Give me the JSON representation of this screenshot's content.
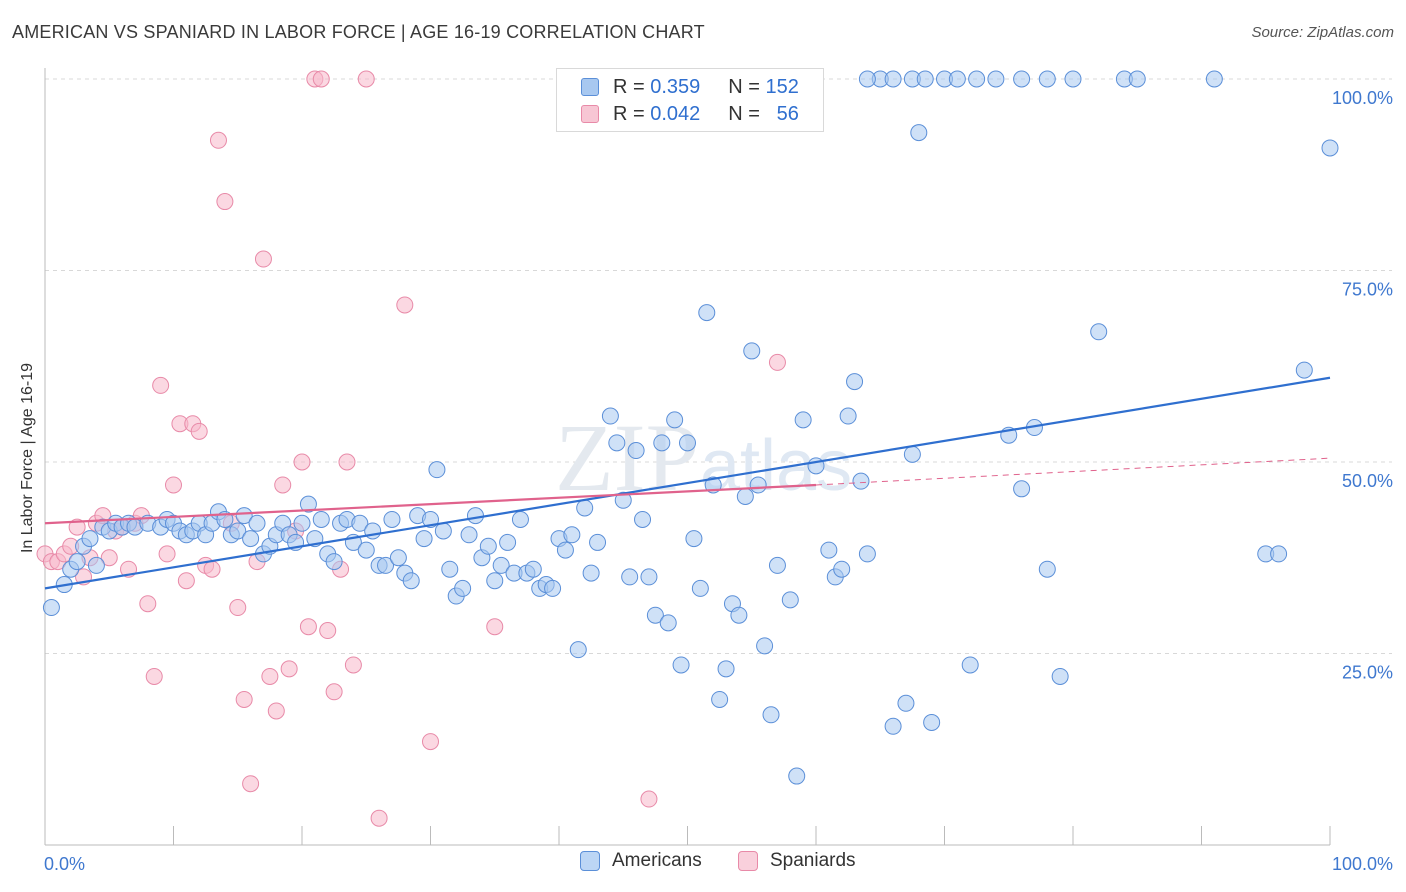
{
  "header": {
    "title": "AMERICAN VS SPANIARD IN LABOR FORCE | AGE 16-19 CORRELATION CHART",
    "source": "Source: ZipAtlas.com"
  },
  "legend_top": {
    "rows": [
      {
        "r_label": "R =",
        "r_value": "0.359",
        "n_label": "N =",
        "n_value": "152"
      },
      {
        "r_label": "R =",
        "r_value": "0.042",
        "n_label": "N =",
        "n_value": "56"
      }
    ]
  },
  "legend_bottom": {
    "items": [
      "Americans",
      "Spaniards"
    ]
  },
  "colors": {
    "americans_fill": "#a8c8f0",
    "americans_stroke": "#5b8fd8",
    "americans_line": "#2f6fcf",
    "spaniards_fill": "#f7b8cb",
    "spaniards_stroke": "#e88aa8",
    "spaniards_line": "#e0628c",
    "axis_label": "#3f78cf"
  },
  "chart_data": {
    "type": "scatter",
    "title": "AMERICAN VS SPANIARD IN LABOR FORCE | AGE 16-19 CORRELATION CHART",
    "ylabel": "In Labor Force | Age 16-19",
    "xlabel": "",
    "xlim": [
      0,
      100
    ],
    "ylim": [
      0,
      100
    ],
    "x_tick_labels": [
      "0.0%",
      "100.0%"
    ],
    "y_tick_labels": [
      "25.0%",
      "50.0%",
      "75.0%",
      "100.0%"
    ],
    "y_ticks": [
      25,
      50,
      75,
      100
    ],
    "grid": true,
    "legend_placement": "top-center",
    "watermark": "ZIPatlas",
    "series": [
      {
        "name": "Americans",
        "r": 0.359,
        "n": 152,
        "trend": {
          "x": [
            0,
            100
          ],
          "y": [
            33.5,
            61.0
          ]
        },
        "points": [
          [
            0.5,
            31
          ],
          [
            1.5,
            34
          ],
          [
            2,
            36
          ],
          [
            2.5,
            37
          ],
          [
            3,
            39
          ],
          [
            3.5,
            40
          ],
          [
            4,
            36.5
          ],
          [
            4.5,
            41.5
          ],
          [
            5,
            41
          ],
          [
            5.5,
            42
          ],
          [
            6,
            41.5
          ],
          [
            6.5,
            42
          ],
          [
            7,
            41.5
          ],
          [
            8,
            42
          ],
          [
            9,
            41.5
          ],
          [
            9.5,
            42.5
          ],
          [
            10,
            42
          ],
          [
            10.5,
            41
          ],
          [
            11,
            40.5
          ],
          [
            11.5,
            41
          ],
          [
            12,
            42
          ],
          [
            12.5,
            40.5
          ],
          [
            13,
            42
          ],
          [
            13.5,
            43.5
          ],
          [
            14,
            42.5
          ],
          [
            14.5,
            40.5
          ],
          [
            15,
            41
          ],
          [
            15.5,
            43
          ],
          [
            16,
            40
          ],
          [
            16.5,
            42
          ],
          [
            17,
            38
          ],
          [
            17.5,
            39
          ],
          [
            18,
            40.5
          ],
          [
            18.5,
            42
          ],
          [
            19,
            40.5
          ],
          [
            19.5,
            39.5
          ],
          [
            20,
            42
          ],
          [
            20.5,
            44.5
          ],
          [
            21,
            40
          ],
          [
            21.5,
            42.5
          ],
          [
            22,
            38
          ],
          [
            22.5,
            37
          ],
          [
            23,
            42
          ],
          [
            23.5,
            42.5
          ],
          [
            24,
            39.5
          ],
          [
            24.5,
            42
          ],
          [
            25,
            38.5
          ],
          [
            25.5,
            41
          ],
          [
            26,
            36.5
          ],
          [
            26.5,
            36.5
          ],
          [
            27,
            42.5
          ],
          [
            27.5,
            37.5
          ],
          [
            28,
            35.5
          ],
          [
            28.5,
            34.5
          ],
          [
            29,
            43
          ],
          [
            29.5,
            40
          ],
          [
            30,
            42.5
          ],
          [
            30.5,
            49
          ],
          [
            31,
            41
          ],
          [
            31.5,
            36
          ],
          [
            32,
            32.5
          ],
          [
            32.5,
            33.5
          ],
          [
            33,
            40.5
          ],
          [
            33.5,
            43
          ],
          [
            34,
            37.5
          ],
          [
            34.5,
            39
          ],
          [
            35,
            34.5
          ],
          [
            35.5,
            36.5
          ],
          [
            36,
            39.5
          ],
          [
            36.5,
            35.5
          ],
          [
            37,
            42.5
          ],
          [
            37.5,
            35.5
          ],
          [
            38,
            36
          ],
          [
            38.5,
            33.5
          ],
          [
            39,
            34
          ],
          [
            39.5,
            33.5
          ],
          [
            40,
            40
          ],
          [
            40.5,
            38.5
          ],
          [
            41,
            40.5
          ],
          [
            41.5,
            25.5
          ],
          [
            42,
            44
          ],
          [
            42.5,
            35.5
          ],
          [
            43,
            39.5
          ],
          [
            44,
            56
          ],
          [
            44.5,
            52.5
          ],
          [
            45,
            45
          ],
          [
            45.5,
            35
          ],
          [
            46,
            51.5
          ],
          [
            46.5,
            42.5
          ],
          [
            47,
            35
          ],
          [
            47.5,
            30
          ],
          [
            48,
            52.5
          ],
          [
            48.5,
            29
          ],
          [
            49,
            55.5
          ],
          [
            49.5,
            23.5
          ],
          [
            50,
            52.5
          ],
          [
            50.5,
            40
          ],
          [
            51,
            33.5
          ],
          [
            51.5,
            69.5
          ],
          [
            52,
            47
          ],
          [
            52.5,
            19
          ],
          [
            53,
            23
          ],
          [
            53.5,
            31.5
          ],
          [
            54,
            30
          ],
          [
            54.5,
            45.5
          ],
          [
            55,
            64.5
          ],
          [
            55.5,
            47
          ],
          [
            56,
            26
          ],
          [
            56.5,
            17
          ],
          [
            57,
            36.5
          ],
          [
            58,
            32
          ],
          [
            58.5,
            9
          ],
          [
            59,
            55.5
          ],
          [
            60,
            49.5
          ],
          [
            61,
            38.5
          ],
          [
            61.5,
            35
          ],
          [
            62,
            36
          ],
          [
            62.5,
            56
          ],
          [
            63,
            60.5
          ],
          [
            63.5,
            47.5
          ],
          [
            64,
            38
          ],
          [
            66,
            15.5
          ],
          [
            67,
            18.5
          ],
          [
            67.5,
            51
          ],
          [
            68,
            93
          ],
          [
            69,
            16
          ],
          [
            72,
            23.5
          ],
          [
            75,
            53.5
          ],
          [
            76,
            46.5
          ],
          [
            77,
            54.5
          ],
          [
            78,
            36
          ],
          [
            79,
            22
          ],
          [
            82,
            67
          ],
          [
            84,
            100
          ],
          [
            85,
            100
          ],
          [
            98,
            62
          ],
          [
            100,
            91
          ],
          [
            70,
            100
          ],
          [
            71,
            100
          ],
          [
            72.5,
            100
          ],
          [
            74,
            100
          ],
          [
            76,
            100
          ],
          [
            78,
            100
          ],
          [
            80,
            100
          ],
          [
            65,
            100
          ],
          [
            66,
            100
          ],
          [
            67.5,
            100
          ],
          [
            68.5,
            100
          ],
          [
            95,
            38
          ],
          [
            96,
            38
          ],
          [
            64,
            100
          ],
          [
            91,
            100
          ]
        ]
      },
      {
        "name": "Spaniards",
        "r": 0.042,
        "n": 56,
        "trend": {
          "x": [
            0,
            60
          ],
          "y": [
            42.0,
            47.0
          ]
        },
        "trend_extension": {
          "x": [
            60,
            100
          ],
          "y": [
            47.0,
            50.5
          ]
        },
        "points": [
          [
            0,
            38
          ],
          [
            0.5,
            37
          ],
          [
            1,
            37
          ],
          [
            1.5,
            38
          ],
          [
            2,
            39
          ],
          [
            2.5,
            41.5
          ],
          [
            3,
            35
          ],
          [
            3.5,
            37.5
          ],
          [
            4,
            42
          ],
          [
            4.5,
            43
          ],
          [
            5,
            37.5
          ],
          [
            5.5,
            41
          ],
          [
            6,
            41.5
          ],
          [
            6.5,
            36
          ],
          [
            7,
            42
          ],
          [
            7.5,
            43
          ],
          [
            8,
            31.5
          ],
          [
            8.5,
            22
          ],
          [
            9,
            60
          ],
          [
            9.5,
            38
          ],
          [
            10,
            47
          ],
          [
            10.5,
            55
          ],
          [
            11,
            34.5
          ],
          [
            11.5,
            55
          ],
          [
            12,
            54
          ],
          [
            12.5,
            36.5
          ],
          [
            13,
            36
          ],
          [
            13.5,
            92
          ],
          [
            14,
            84
          ],
          [
            14.5,
            42
          ],
          [
            15,
            31
          ],
          [
            15.5,
            19
          ],
          [
            16,
            8
          ],
          [
            16.5,
            37
          ],
          [
            17,
            76.5
          ],
          [
            17.5,
            22
          ],
          [
            18,
            17.5
          ],
          [
            18.5,
            47
          ],
          [
            19,
            23
          ],
          [
            19.5,
            41
          ],
          [
            20,
            50
          ],
          [
            20.5,
            28.5
          ],
          [
            21,
            100
          ],
          [
            21.5,
            100
          ],
          [
            22,
            28
          ],
          [
            22.5,
            20
          ],
          [
            23,
            36
          ],
          [
            23.5,
            50
          ],
          [
            24,
            23.5
          ],
          [
            25,
            100
          ],
          [
            26,
            3.5
          ],
          [
            28,
            70.5
          ],
          [
            30,
            13.5
          ],
          [
            35,
            28.5
          ],
          [
            47,
            6
          ],
          [
            57,
            63
          ]
        ]
      }
    ]
  }
}
